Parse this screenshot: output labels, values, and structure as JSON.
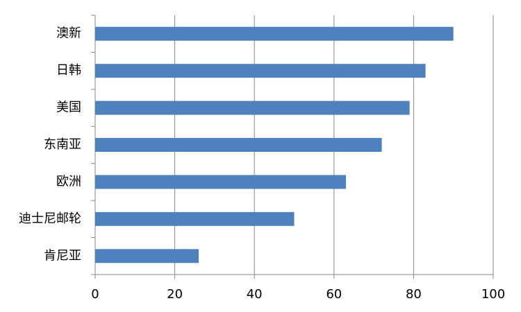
{
  "chart_data": {
    "type": "barh",
    "categories": [
      "澳新",
      "日韩",
      "美国",
      "东南亚",
      "欧洲",
      "迪士尼邮轮",
      "肯尼亚"
    ],
    "values": [
      90,
      83,
      79,
      72,
      63,
      50,
      26
    ],
    "color": "#4f81bd",
    "xlim": [
      0,
      100
    ],
    "xticks": [
      0,
      20,
      40,
      60,
      80,
      100
    ],
    "grid": true
  }
}
